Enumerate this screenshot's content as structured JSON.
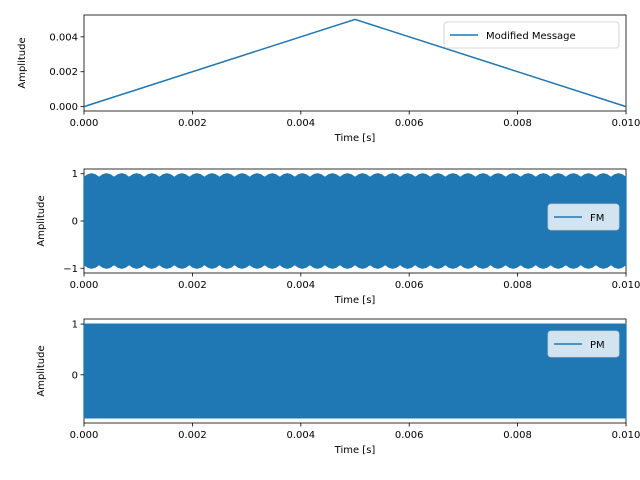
{
  "chart_data": [
    {
      "type": "line",
      "xlabel": "Time [s]",
      "ylabel": "Amplitude",
      "xlim": [
        0.0,
        0.01
      ],
      "ylim": [
        -0.00025,
        0.00525
      ],
      "xticks": [
        "0.000",
        "0.002",
        "0.004",
        "0.006",
        "0.008",
        "0.010"
      ],
      "yticks": [
        "0.000",
        "0.002",
        "0.004"
      ],
      "grid": false,
      "legend_position": "upper right",
      "series": [
        {
          "name": "Modified Message",
          "color": "#1f77b4",
          "x": [
            0.0,
            0.005,
            0.01
          ],
          "y": [
            0.0,
            0.005,
            0.0
          ]
        }
      ]
    },
    {
      "type": "line",
      "xlabel": "Time [s]",
      "ylabel": "Amplitude",
      "xlim": [
        0.0,
        0.01
      ],
      "ylim": [
        -1.1,
        1.1
      ],
      "xticks": [
        "0.000",
        "0.002",
        "0.004",
        "0.006",
        "0.008",
        "0.010"
      ],
      "yticks": [
        "1",
        "0",
        "−1"
      ],
      "grid": false,
      "legend_position": "center right",
      "series": [
        {
          "name": "FM",
          "color": "#1f77b4",
          "x_range": [
            0.0,
            0.01
          ],
          "amplitude": 1.0,
          "description": "dense oscillation filling -1..1"
        }
      ]
    },
    {
      "type": "line",
      "xlabel": "Time [s]",
      "ylabel": "Amplitude",
      "xlim": [
        0.0,
        0.01
      ],
      "ylim": [
        -0.95,
        1.1
      ],
      "xticks": [
        "0.000",
        "0.002",
        "0.004",
        "0.006",
        "0.008",
        "0.010"
      ],
      "yticks": [
        "1",
        "0"
      ],
      "grid": false,
      "legend_position": "upper right",
      "series": [
        {
          "name": "PM",
          "color": "#1f77b4",
          "x_range": [
            0.0,
            0.01
          ],
          "ymin": -0.85,
          "ymax": 1.0
        }
      ]
    }
  ]
}
